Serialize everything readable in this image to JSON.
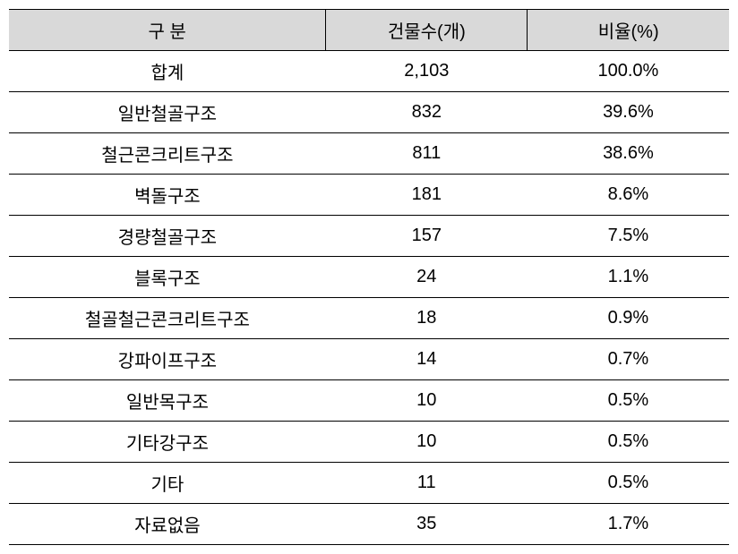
{
  "table": {
    "columns": [
      "구 분",
      "건물수(개)",
      "비율(%)"
    ],
    "rows": [
      [
        "합계",
        "2,103",
        "100.0%"
      ],
      [
        "일반철골구조",
        "832",
        "39.6%"
      ],
      [
        "철근콘크리트구조",
        "811",
        "38.6%"
      ],
      [
        "벽돌구조",
        "181",
        "8.6%"
      ],
      [
        "경량철골구조",
        "157",
        "7.5%"
      ],
      [
        "블록구조",
        "24",
        "1.1%"
      ],
      [
        "철골철근콘크리트구조",
        "18",
        "0.9%"
      ],
      [
        "강파이프구조",
        "14",
        "0.7%"
      ],
      [
        "일반목구조",
        "10",
        "0.5%"
      ],
      [
        "기타강구조",
        "10",
        "0.5%"
      ],
      [
        "기타",
        "11",
        "0.5%"
      ],
      [
        "자료없음",
        "35",
        "1.7%"
      ]
    ],
    "header_bg": "#d9d9d9",
    "border_color": "#000000",
    "font_size": 20,
    "col_widths": [
      "44%",
      "28%",
      "28%"
    ]
  }
}
